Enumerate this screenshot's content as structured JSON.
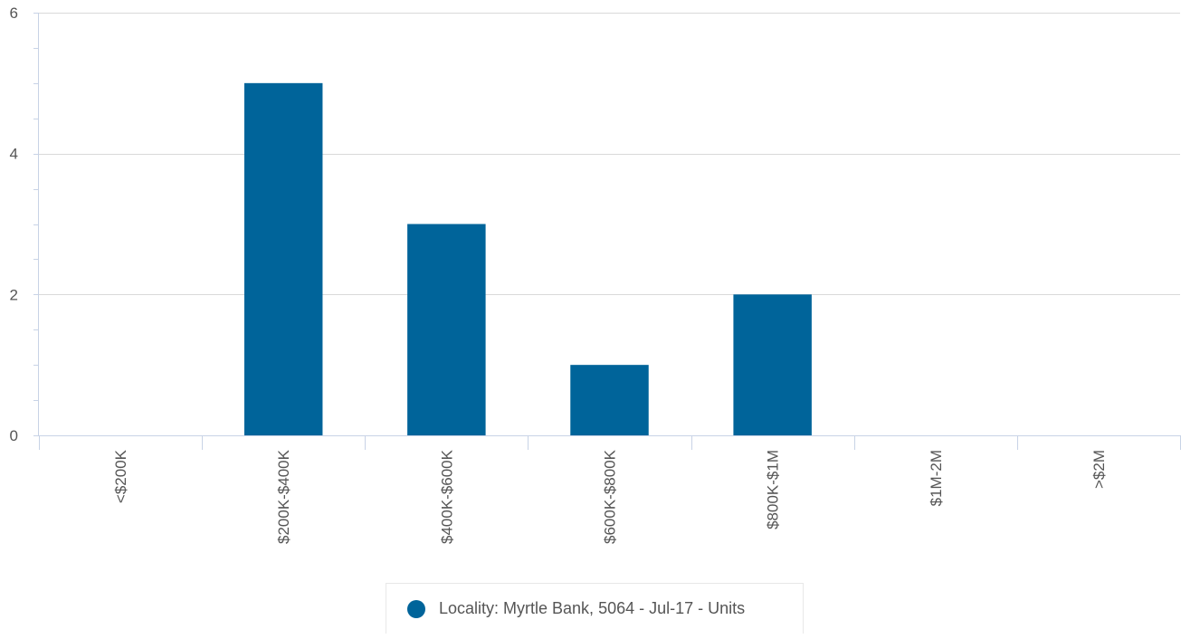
{
  "chart_data": {
    "type": "bar",
    "categories": [
      "<$200K",
      "$200K-$400K",
      "$400K-$600K",
      "$600K-$800K",
      "$800K-$1M",
      "$1M-2M",
      ">$2M"
    ],
    "series": [
      {
        "name": "Locality: Myrtle Bank, 5064 - Jul-17 - Units",
        "values": [
          0,
          5,
          3,
          1,
          2,
          0,
          0
        ]
      }
    ],
    "ylim": [
      0,
      6
    ],
    "yticks": [
      0,
      2,
      4,
      6
    ],
    "y_minor_step": 0.5,
    "title": "",
    "xlabel": "",
    "ylabel": "",
    "grid": true,
    "legend_position": "bottom-center",
    "colors": {
      "bar": "#00649a",
      "grid": "#d9d9d9",
      "axis": "#c8d3e6",
      "tick_text": "#555555"
    }
  }
}
